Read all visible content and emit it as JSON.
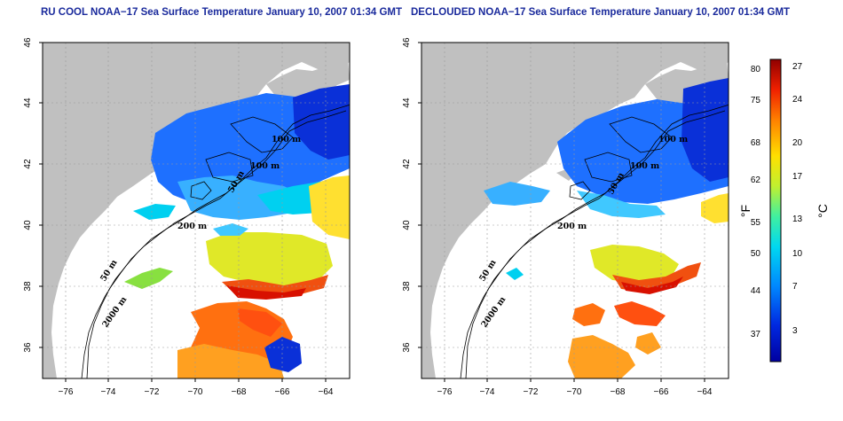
{
  "panels": [
    {
      "title": "RU COOL NOAA−17 Sea Surface Temperature January 10, 2007 01:34 GMT",
      "contours": [
        "100 m",
        "100 m",
        "50 m",
        "200 m",
        "50 m",
        "2000 m"
      ]
    },
    {
      "title": "DECLOUDED NOAA−17 Sea Surface Temperature January 10, 2007 01:34 GMT",
      "contours": [
        "100 m",
        "100 m",
        "50 m",
        "200 m",
        "50 m",
        "2000 m"
      ]
    }
  ],
  "axes": {
    "x_ticks": [
      "−76",
      "−74",
      "−72",
      "−70",
      "−68",
      "−66",
      "−64"
    ],
    "y_ticks": [
      "36",
      "38",
      "40",
      "42",
      "44",
      "46"
    ]
  },
  "colorbar": {
    "f_label": "°F",
    "c_label": "°C",
    "f_ticks": [
      "80",
      "75",
      "68",
      "62",
      "55",
      "50",
      "44",
      "37"
    ],
    "c_ticks": [
      "27",
      "24",
      "20",
      "17",
      "13",
      "10",
      "7",
      "3"
    ]
  },
  "colors": {
    "land": "#c0c0c0",
    "title": "#1a2a9c",
    "cold": "#0818a8",
    "warm": "#c80000"
  }
}
